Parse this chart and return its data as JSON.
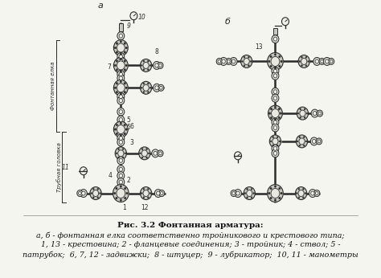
{
  "title_bold": "Рис. 3.2 Фонтанная арматура:",
  "caption_lines": [
    "а, б - фонтанная елка соответственно тройникового и крестового типа;",
    "1, 13 - крестовина; 2 - фланцевые соединения; 3 - тройник; 4 - ствол; 5 -",
    "патрубок;  6, 7, 12 - задвижки;  8 - штуцер;  9 - лубрикатор;  10, 11 - манометры"
  ],
  "label_a": "а",
  "label_b": "б",
  "bg_color": "#f5f5f0",
  "text_color": "#111111",
  "title_fontsize": 7.5,
  "caption_fontsize": 6.8,
  "label_fontsize": 8
}
